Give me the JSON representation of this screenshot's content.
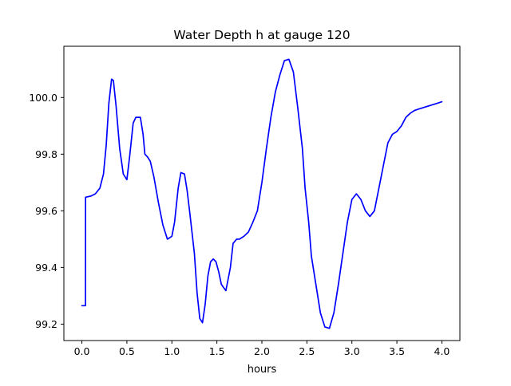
{
  "chart_data": {
    "type": "line",
    "title": "Water Depth h at gauge 120",
    "xlabel": "hours",
    "ylabel": "",
    "xlim": [
      -0.2,
      4.2
    ],
    "ylim": [
      99.142,
      100.181
    ],
    "x_ticks": [
      0.0,
      0.5,
      1.0,
      1.5,
      2.0,
      2.5,
      3.0,
      3.5,
      4.0
    ],
    "x_tick_labels": [
      "0.0",
      "0.5",
      "1.0",
      "1.5",
      "2.0",
      "2.5",
      "3.0",
      "3.5",
      "4.0"
    ],
    "y_ticks": [
      99.2,
      99.4,
      99.6,
      99.8,
      100.0
    ],
    "y_tick_labels": [
      "99.2",
      "99.4",
      "99.6",
      "99.8",
      "100.0"
    ],
    "grid": false,
    "legend": "none",
    "series": [
      {
        "color": "#0000ff",
        "x": [
          0.0,
          0.04,
          0.041,
          0.1,
          0.15,
          0.2,
          0.24,
          0.27,
          0.3,
          0.33,
          0.35,
          0.38,
          0.42,
          0.46,
          0.5,
          0.53,
          0.57,
          0.6,
          0.65,
          0.68,
          0.7,
          0.73,
          0.76,
          0.8,
          0.85,
          0.9,
          0.95,
          1.0,
          1.03,
          1.07,
          1.1,
          1.14,
          1.17,
          1.2,
          1.25,
          1.28,
          1.31,
          1.34,
          1.37,
          1.4,
          1.43,
          1.46,
          1.49,
          1.52,
          1.55,
          1.6,
          1.65,
          1.68,
          1.72,
          1.75,
          1.8,
          1.85,
          1.9,
          1.95,
          2.0,
          2.05,
          2.1,
          2.15,
          2.2,
          2.25,
          2.3,
          2.35,
          2.4,
          2.45,
          2.48,
          2.52,
          2.55,
          2.6,
          2.65,
          2.7,
          2.75,
          2.8,
          2.85,
          2.9,
          2.95,
          3.0,
          3.05,
          3.1,
          3.15,
          3.2,
          3.25,
          3.3,
          3.35,
          3.4,
          3.45,
          3.5,
          3.55,
          3.6,
          3.65,
          3.7,
          3.75,
          3.8,
          3.85,
          3.9,
          3.95,
          4.0
        ],
        "y": [
          99.265,
          99.265,
          99.648,
          99.652,
          99.66,
          99.68,
          99.73,
          99.83,
          99.98,
          100.065,
          100.06,
          99.97,
          99.82,
          99.73,
          99.71,
          99.79,
          99.91,
          99.93,
          99.93,
          99.87,
          99.8,
          99.79,
          99.775,
          99.72,
          99.63,
          99.55,
          99.5,
          99.51,
          99.56,
          99.68,
          99.735,
          99.73,
          99.67,
          99.59,
          99.45,
          99.31,
          99.22,
          99.205,
          99.27,
          99.37,
          99.42,
          99.43,
          99.42,
          99.385,
          99.34,
          99.318,
          99.4,
          99.485,
          99.5,
          99.5,
          99.51,
          99.525,
          99.56,
          99.6,
          99.7,
          99.82,
          99.93,
          100.02,
          100.08,
          100.13,
          100.135,
          100.09,
          99.96,
          99.82,
          99.68,
          99.56,
          99.44,
          99.34,
          99.24,
          99.19,
          99.185,
          99.24,
          99.34,
          99.45,
          99.56,
          99.64,
          99.66,
          99.64,
          99.6,
          99.58,
          99.6,
          99.68,
          99.76,
          99.84,
          99.87,
          99.88,
          99.9,
          99.93,
          99.945,
          99.955,
          99.96,
          99.965,
          99.97,
          99.975,
          99.98,
          99.985
        ]
      }
    ]
  }
}
